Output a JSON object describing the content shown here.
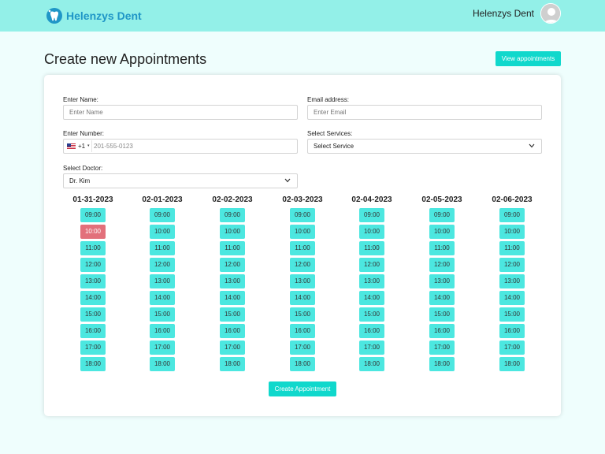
{
  "brand": {
    "name": "Helenzys Dent"
  },
  "user": {
    "name": "Helenzys Dent"
  },
  "page": {
    "title": "Create new Appointments"
  },
  "actions": {
    "view_appointments": "View appointments",
    "create": "Create Appointment"
  },
  "form": {
    "name": {
      "label": "Enter Name:",
      "placeholder": "Enter Name"
    },
    "email": {
      "label": "Email address:",
      "placeholder": "Enter Email"
    },
    "phone": {
      "label": "Enter Number:",
      "country_code": "+1",
      "placeholder": "201-555-0123"
    },
    "services": {
      "label": "Select Services:",
      "value": "Select Service"
    },
    "doctor": {
      "label": "Select Doctor:",
      "value": "Dr. Kim"
    }
  },
  "schedule": {
    "days": [
      {
        "date": "01-31-2023",
        "slots": [
          "09:00",
          "10:00",
          "11:00",
          "12:00",
          "13:00",
          "14:00",
          "15:00",
          "16:00",
          "17:00",
          "18:00"
        ],
        "booked": [
          "10:00"
        ]
      },
      {
        "date": "02-01-2023",
        "slots": [
          "09:00",
          "10:00",
          "11:00",
          "12:00",
          "13:00",
          "14:00",
          "15:00",
          "16:00",
          "17:00",
          "18:00"
        ],
        "booked": []
      },
      {
        "date": "02-02-2023",
        "slots": [
          "09:00",
          "10:00",
          "11:00",
          "12:00",
          "13:00",
          "14:00",
          "15:00",
          "16:00",
          "17:00",
          "18:00"
        ],
        "booked": []
      },
      {
        "date": "02-03-2023",
        "slots": [
          "09:00",
          "10:00",
          "11:00",
          "12:00",
          "13:00",
          "14:00",
          "15:00",
          "16:00",
          "17:00",
          "18:00"
        ],
        "booked": []
      },
      {
        "date": "02-04-2023",
        "slots": [
          "09:00",
          "10:00",
          "11:00",
          "12:00",
          "13:00",
          "14:00",
          "15:00",
          "16:00",
          "17:00",
          "18:00"
        ],
        "booked": []
      },
      {
        "date": "02-05-2023",
        "slots": [
          "09:00",
          "10:00",
          "11:00",
          "12:00",
          "13:00",
          "14:00",
          "15:00",
          "16:00",
          "17:00",
          "18:00"
        ],
        "booked": []
      },
      {
        "date": "02-06-2023",
        "slots": [
          "09:00",
          "10:00",
          "11:00",
          "12:00",
          "13:00",
          "14:00",
          "15:00",
          "16:00",
          "17:00",
          "18:00"
        ],
        "booked": []
      }
    ]
  },
  "colors": {
    "navbar": "#93f0e8",
    "accent": "#10d8cc",
    "slot": "#4ce7e0",
    "booked": "#e2707b",
    "brand": "#1f96c7"
  },
  "icons": {
    "logo": "tooth-logo-icon",
    "avatar": "user-avatar-icon",
    "flag": "us-flag-icon",
    "dropdown": "chevron-down-icon"
  }
}
